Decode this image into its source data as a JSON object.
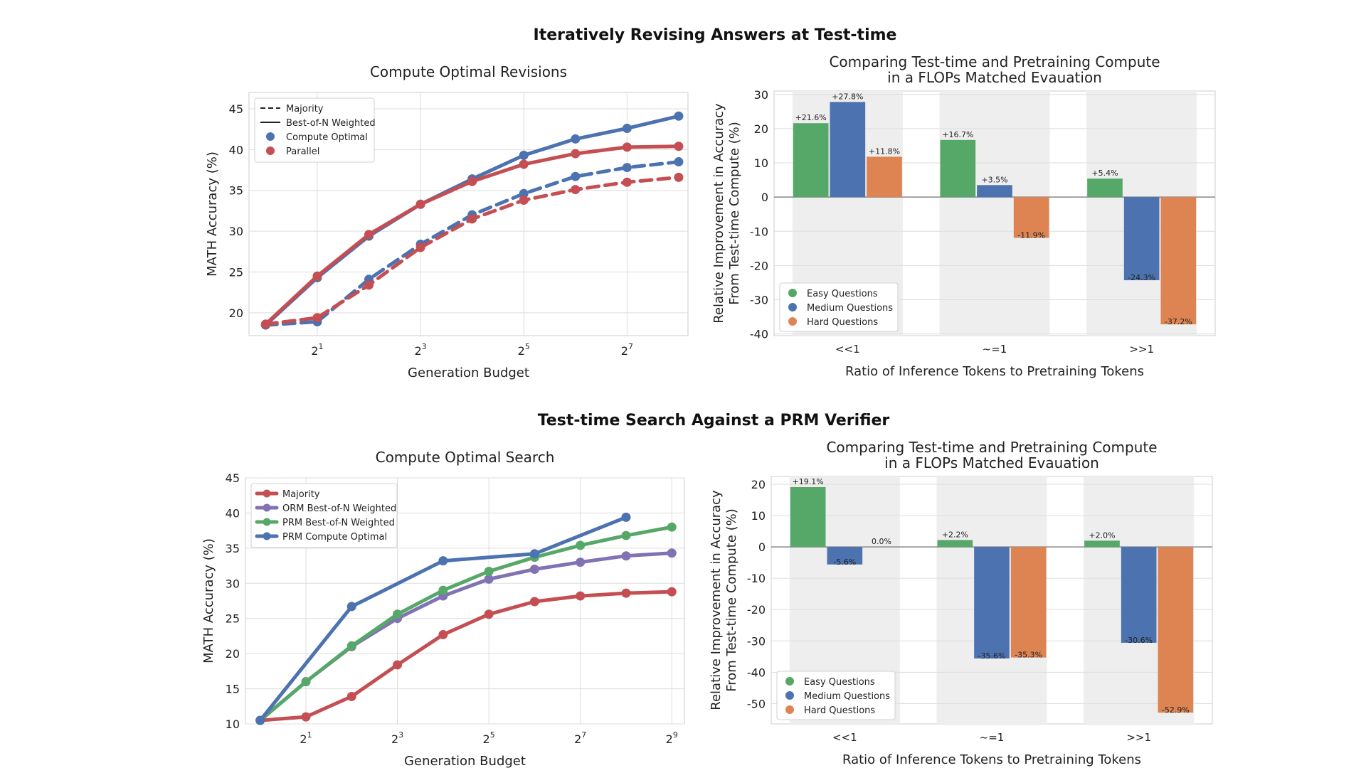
{
  "sections": [
    {
      "title": "Iteratively Revising Answers at Test-time"
    },
    {
      "title": "Test-time Search Against a PRM Verifier"
    }
  ],
  "colors": {
    "blue": "#4c72b0",
    "red": "#c44e52",
    "green": "#55a868",
    "purple": "#8172b3",
    "orange": "#dd8452",
    "grid": "#dddddd",
    "band": "#eeeeee"
  },
  "chart_data": [
    {
      "type": "line",
      "title": "Compute Optimal Revisions",
      "xlabel": "Generation Budget",
      "ylabel": "MATH Accuracy (%)",
      "x_scale": "log2",
      "x": [
        1,
        2,
        4,
        8,
        16,
        32,
        64,
        128,
        256
      ],
      "xlim": [
        0.8,
        290
      ],
      "xticks": [
        {
          "value": 2,
          "base": "2",
          "exp": "1"
        },
        {
          "value": 8,
          "base": "2",
          "exp": "3"
        },
        {
          "value": 32,
          "base": "2",
          "exp": "5"
        },
        {
          "value": 128,
          "base": "2",
          "exp": "7"
        }
      ],
      "ylim": [
        17.2,
        47
      ],
      "yticks": [
        20,
        25,
        30,
        35,
        40,
        45
      ],
      "grid": true,
      "legend_position": "top-left",
      "legend": [
        {
          "label": "Majority",
          "kind": "dashed"
        },
        {
          "label": "Best-of-N Weighted",
          "kind": "solid"
        },
        {
          "label": "Compute Optimal",
          "kind": "dot",
          "color": "#4c72b0"
        },
        {
          "label": "Parallel",
          "kind": "dot",
          "color": "#c44e52"
        }
      ],
      "series": [
        {
          "name": "Compute Optimal",
          "style": "solid",
          "color": "#4c72b0",
          "values": [
            18.5,
            24.3,
            29.4,
            33.3,
            36.4,
            39.3,
            41.3,
            42.6,
            44.1
          ]
        },
        {
          "name": "Parallel",
          "style": "solid",
          "color": "#c44e52",
          "values": [
            18.6,
            24.5,
            29.6,
            33.3,
            36.1,
            38.2,
            39.5,
            40.3,
            40.4
          ]
        },
        {
          "name": "Compute Optimal",
          "style": "dashed",
          "color": "#4c72b0",
          "values": [
            18.5,
            18.9,
            24.1,
            28.4,
            32.0,
            34.6,
            36.7,
            37.8,
            38.5
          ]
        },
        {
          "name": "Parallel",
          "style": "dashed",
          "color": "#c44e52",
          "values": [
            18.6,
            19.4,
            23.4,
            28.0,
            31.5,
            33.8,
            35.1,
            36.0,
            36.6
          ]
        }
      ]
    },
    {
      "type": "bar",
      "title": [
        "Comparing Test-time and Pretraining Compute",
        "in a FLOPs Matched Evauation"
      ],
      "xlabel": "Ratio of Inference Tokens to Pretraining Tokens",
      "ylabel": [
        "Relative Improvement in Accuracy",
        "From Test-time Compute (%)"
      ],
      "categories": [
        "<<1",
        "~=1",
        ">>1"
      ],
      "ylim": [
        -40.5,
        31
      ],
      "yticks": [
        -40,
        -30,
        -20,
        -10,
        0,
        10,
        20,
        30
      ],
      "legend_position": "bottom-left",
      "series": [
        {
          "name": "Easy Questions",
          "color": "#55a868",
          "values": [
            21.6,
            16.7,
            5.4
          ],
          "labels": [
            "+21.6%",
            "+16.7%",
            "+5.4%"
          ]
        },
        {
          "name": "Medium Questions",
          "color": "#4c72b0",
          "values": [
            27.8,
            3.5,
            -24.3
          ],
          "labels": [
            "+27.8%",
            "+3.5%",
            "-24.3%"
          ]
        },
        {
          "name": "Hard Questions",
          "color": "#dd8452",
          "values": [
            11.8,
            -11.9,
            -37.2
          ],
          "labels": [
            "+11.8%",
            "-11.9%",
            "-37.2%"
          ]
        }
      ]
    },
    {
      "type": "line",
      "title": "Compute Optimal Search",
      "xlabel": "Generation Budget",
      "ylabel": "MATH Accuracy (%)",
      "x_scale": "log2",
      "xlim": [
        0.8,
        620
      ],
      "xticks": [
        {
          "value": 2,
          "base": "2",
          "exp": "1"
        },
        {
          "value": 8,
          "base": "2",
          "exp": "3"
        },
        {
          "value": 32,
          "base": "2",
          "exp": "5"
        },
        {
          "value": 128,
          "base": "2",
          "exp": "7"
        },
        {
          "value": 512,
          "base": "2",
          "exp": "9"
        }
      ],
      "ylim": [
        10,
        45
      ],
      "yticks": [
        10,
        15,
        20,
        25,
        30,
        35,
        40,
        45
      ],
      "grid": true,
      "legend_position": "top-left",
      "legend": [
        {
          "label": "Majority",
          "color": "#c44e52"
        },
        {
          "label": "ORM Best-of-N Weighted",
          "color": "#8172b3"
        },
        {
          "label": "PRM Best-of-N Weighted",
          "color": "#55a868"
        },
        {
          "label": "PRM Compute Optimal",
          "color": "#4c72b0"
        }
      ],
      "series": [
        {
          "name": "Majority",
          "color": "#c44e52",
          "x": [
            1,
            2,
            4,
            8,
            16,
            32,
            64,
            128,
            256,
            512
          ],
          "values": [
            10.5,
            11.0,
            13.9,
            18.4,
            22.7,
            25.6,
            27.4,
            28.2,
            28.6,
            28.8
          ]
        },
        {
          "name": "ORM Best-of-N Weighted",
          "color": "#8172b3",
          "x": [
            1,
            2,
            4,
            8,
            16,
            32,
            64,
            128,
            256,
            512
          ],
          "values": [
            10.5,
            16.0,
            21.0,
            25.0,
            28.2,
            30.6,
            32.0,
            33.0,
            33.9,
            34.3
          ]
        },
        {
          "name": "PRM Best-of-N Weighted",
          "color": "#55a868",
          "x": [
            1,
            2,
            4,
            8,
            16,
            32,
            64,
            128,
            256,
            512
          ],
          "values": [
            10.5,
            16.0,
            21.1,
            25.6,
            29.0,
            31.7,
            33.7,
            35.4,
            36.8,
            38.0
          ]
        },
        {
          "name": "PRM Compute Optimal",
          "color": "#4c72b0",
          "x": [
            1,
            4,
            16,
            64,
            256
          ],
          "values": [
            10.5,
            26.7,
            33.2,
            34.2,
            39.4
          ]
        }
      ]
    },
    {
      "type": "bar",
      "title": [
        "Comparing Test-time and Pretraining Compute",
        "in a FLOPs Matched Evauation"
      ],
      "xlabel": "Ratio of Inference Tokens to Pretraining Tokens",
      "ylabel": [
        "Relative Improvement in Accuracy",
        "From Test-time Compute (%)"
      ],
      "categories": [
        "<<1",
        "~=1",
        ">>1"
      ],
      "ylim": [
        -56.5,
        22.5
      ],
      "yticks": [
        -50,
        -40,
        -30,
        -20,
        -10,
        0,
        10,
        20
      ],
      "legend_position": "bottom-left",
      "series": [
        {
          "name": "Easy Questions",
          "color": "#55a868",
          "values": [
            19.1,
            2.2,
            2.0
          ],
          "labels": [
            "+19.1%",
            "+2.2%",
            "+2.0%"
          ]
        },
        {
          "name": "Medium Questions",
          "color": "#4c72b0",
          "values": [
            -5.6,
            -35.6,
            -30.6
          ],
          "labels": [
            "-5.6%",
            "-35.6%",
            "-30.6%"
          ]
        },
        {
          "name": "Hard Questions",
          "color": "#dd8452",
          "values": [
            0.0,
            -35.3,
            -52.9
          ],
          "labels": [
            "0.0%",
            "-35.3%",
            "-52.9%"
          ]
        }
      ]
    }
  ]
}
